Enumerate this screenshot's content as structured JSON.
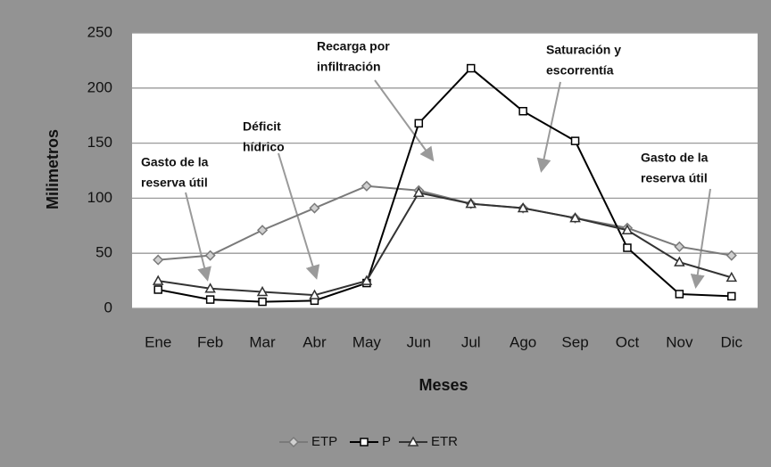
{
  "chart_data": {
    "type": "line",
    "categories": [
      "Ene",
      "Feb",
      "Mar",
      "Abr",
      "May",
      "Jun",
      "Jul",
      "Ago",
      "Sep",
      "Oct",
      "Nov",
      "Dic"
    ],
    "series": [
      {
        "name": "ETP",
        "color": "#7a7a7a",
        "marker": "diamond",
        "values": [
          44,
          48,
          71,
          91,
          111,
          107,
          95,
          91,
          82,
          73,
          56,
          48
        ]
      },
      {
        "name": "P",
        "color": "#000000",
        "marker": "square",
        "values": [
          17,
          8,
          6,
          7,
          23,
          168,
          218,
          179,
          152,
          55,
          13,
          11
        ]
      },
      {
        "name": "ETR",
        "color": "#333333",
        "marker": "triangle",
        "values": [
          25,
          18,
          15,
          12,
          25,
          105,
          95,
          91,
          82,
          71,
          42,
          28
        ]
      }
    ],
    "x_label": "Meses",
    "y_label": "Milimetros",
    "ylim": [
      0,
      250
    ],
    "yticks": [
      0,
      50,
      100,
      150,
      200,
      250
    ],
    "grid": true,
    "legend": "bottom",
    "annotations": [
      [
        "Gasto de la",
        "reserva útil"
      ],
      [
        "Déficit",
        "hídrico"
      ],
      [
        "Recarga por",
        "infiltración"
      ],
      [
        "Saturación y",
        "escorrentía"
      ],
      [
        "Gasto de la",
        "reserva útil"
      ]
    ]
  }
}
